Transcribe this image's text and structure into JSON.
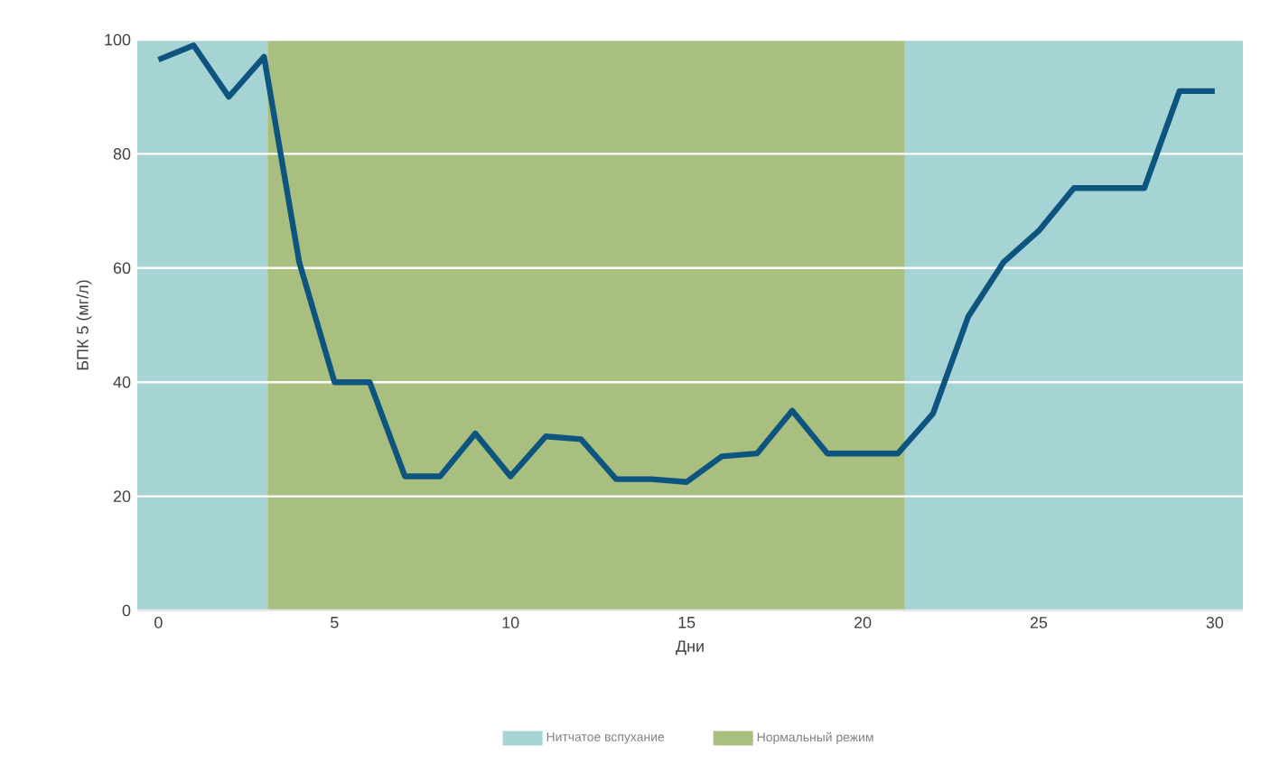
{
  "chart_data": {
    "type": "line",
    "xlabel": "Дни",
    "ylabel": "БПК 5 (мг/л)",
    "x": [
      0,
      1,
      2,
      3,
      4,
      5,
      6,
      7,
      8,
      9,
      10,
      11,
      12,
      13,
      14,
      15,
      16,
      17,
      18,
      19,
      20,
      21,
      22,
      23,
      24,
      25,
      26,
      27,
      28,
      29,
      30
    ],
    "series": [
      {
        "color": "#0d557f",
        "values": [
          96.5,
          99,
          90,
          97,
          61,
          40,
          40,
          23.5,
          23.5,
          31,
          23.5,
          30.5,
          30,
          23,
          23,
          22.5,
          27,
          27.5,
          35,
          27.5,
          27.5,
          27.5,
          34.5,
          51.5,
          61,
          66.5,
          74,
          74,
          74,
          91,
          91
        ]
      }
    ],
    "xlim": [
      -0.6,
      30.8
    ],
    "ylim": [
      0,
      100
    ],
    "xticks": [
      0,
      5,
      10,
      15,
      20,
      25,
      30
    ],
    "yticks": [
      0,
      20,
      40,
      60,
      80,
      100
    ],
    "bands": [
      {
        "axis": "x",
        "from": -0.6,
        "to": 3.1,
        "label": "Нитчатое вспухание",
        "color": "#a6d3d4"
      },
      {
        "axis": "x",
        "from": 3.1,
        "to": 21.2,
        "label": "Нормальный режим",
        "color": "#a8bf80"
      },
      {
        "axis": "x",
        "from": 21.2,
        "to": 30.8,
        "color": "#a6d3d4"
      }
    ],
    "grid": "y",
    "legend": "bottom",
    "marker": "none",
    "line_style": "solid"
  }
}
